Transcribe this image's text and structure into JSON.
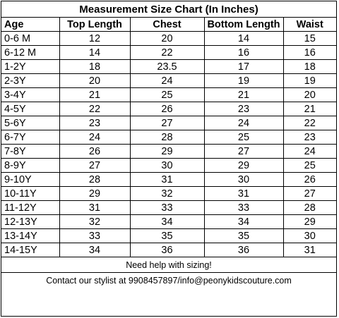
{
  "title": "Measurement Size Chart (In Inches)",
  "columns": [
    "Age",
    "Top Length",
    "Chest",
    "Bottom Length",
    "Waist"
  ],
  "rows": [
    [
      "0-6 M",
      "12",
      "20",
      "14",
      "15"
    ],
    [
      "6-12 M",
      "14",
      "22",
      "16",
      "16"
    ],
    [
      "1-2Y",
      "18",
      "23.5",
      "17",
      "18"
    ],
    [
      "2-3Y",
      "20",
      "24",
      "19",
      "19"
    ],
    [
      "3-4Y",
      "21",
      "25",
      "21",
      "20"
    ],
    [
      "4-5Y",
      "22",
      "26",
      "23",
      "21"
    ],
    [
      "5-6Y",
      "23",
      "27",
      "24",
      "22"
    ],
    [
      "6-7Y",
      "24",
      "28",
      "25",
      "23"
    ],
    [
      "7-8Y",
      "26",
      "29",
      "27",
      "24"
    ],
    [
      "8-9Y",
      "27",
      "30",
      "29",
      "25"
    ],
    [
      "9-10Y",
      "28",
      "31",
      "30",
      "26"
    ],
    [
      "10-11Y",
      "29",
      "32",
      "31",
      "27"
    ],
    [
      "11-12Y",
      "31",
      "33",
      "33",
      "28"
    ],
    [
      "12-13Y",
      "32",
      "34",
      "34",
      "29"
    ],
    [
      "13-14Y",
      "33",
      "35",
      "35",
      "30"
    ],
    [
      "14-15Y",
      "34",
      "36",
      "36",
      "31"
    ]
  ],
  "note": "Need help with sizing!",
  "contact": "Contact our stylist at 9908457897/info@peonykidscouture.com"
}
